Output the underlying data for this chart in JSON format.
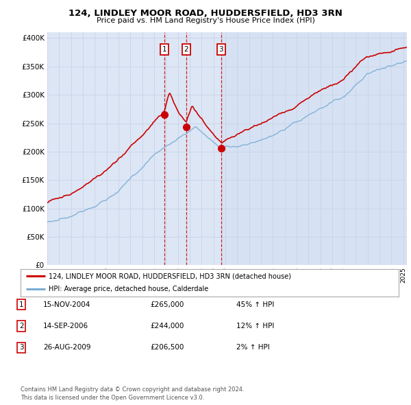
{
  "title": "124, LINDLEY MOOR ROAD, HUDDERSFIELD, HD3 3RN",
  "subtitle": "Price paid vs. HM Land Registry's House Price Index (HPI)",
  "chart_bg_color": "#dce6f5",
  "fig_bg_color": "#ffffff",
  "ylim": [
    0,
    410000
  ],
  "yticks": [
    0,
    50000,
    100000,
    150000,
    200000,
    250000,
    300000,
    350000,
    400000
  ],
  "xlim_start": 1995,
  "xlim_end": 2025.3,
  "sales": [
    {
      "date_num": 2004.88,
      "price": 265000,
      "label": "1"
    },
    {
      "date_num": 2006.71,
      "price": 244000,
      "label": "2"
    },
    {
      "date_num": 2009.65,
      "price": 206500,
      "label": "3"
    }
  ],
  "shade_start": 2009.65,
  "legend_entries": [
    "124, LINDLEY MOOR ROAD, HUDDERSFIELD, HD3 3RN (detached house)",
    "HPI: Average price, detached house, Calderdale"
  ],
  "table_rows": [
    {
      "num": "1",
      "date": "15-NOV-2004",
      "price": "£265,000",
      "change": "45% ↑ HPI"
    },
    {
      "num": "2",
      "date": "14-SEP-2006",
      "price": "£244,000",
      "change": "12% ↑ HPI"
    },
    {
      "num": "3",
      "date": "26-AUG-2009",
      "price": "£206,500",
      "change": "2% ↑ HPI"
    }
  ],
  "footer": "Contains HM Land Registry data © Crown copyright and database right 2024.\nThis data is licensed under the Open Government Licence v3.0.",
  "red_color": "#cc0000",
  "blue_color": "#7aadd4",
  "vline_color": "#cc0000",
  "grid_color": "#c8d4e8",
  "box_color": "#cc0000",
  "shade_color": "#c8d8f0"
}
